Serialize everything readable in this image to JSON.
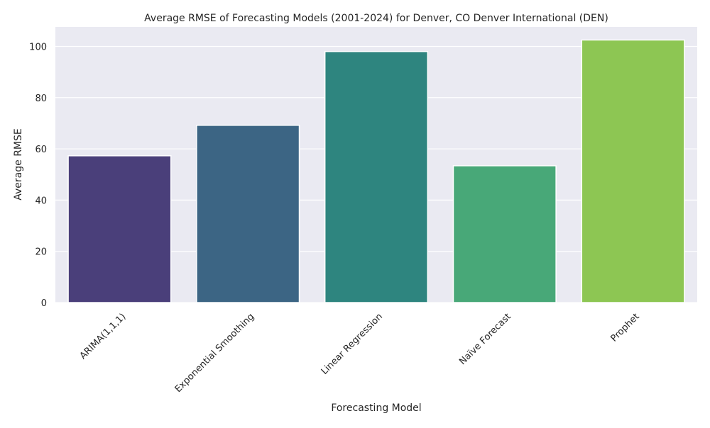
{
  "chart_data": {
    "type": "bar",
    "title": "Average RMSE of Forecasting Models (2001-2024) for Denver, CO Denver International (DEN)",
    "xlabel": "Forecasting Model",
    "ylabel": "Average RMSE",
    "categories": [
      "ARIMA(1,1,1)",
      "Exponential Smoothing",
      "Linear Regression",
      "Naïve Forecast",
      "Prophet"
    ],
    "values": [
      57.3,
      69.2,
      98.0,
      53.4,
      102.5
    ],
    "ylim": [
      0,
      107.6
    ],
    "yticks": [
      0,
      20,
      40,
      60,
      80,
      100
    ],
    "grid": true,
    "colors": {
      "background": "#EAEAF2",
      "grid": "#FFFFFF",
      "bars": [
        "#4A3F7A",
        "#3C6584",
        "#2E857F",
        "#48A878",
        "#8DC653"
      ]
    }
  }
}
